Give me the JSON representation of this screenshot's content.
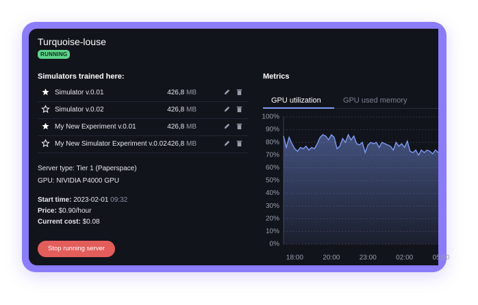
{
  "server": {
    "name": "Turquoise-louse",
    "status": "RUNNING"
  },
  "simulators": {
    "heading": "Simulators trained here:",
    "rows": [
      {
        "name": "Simulator v.0.01",
        "starred": true,
        "size": "426,8",
        "unit": "MB"
      },
      {
        "name": "Simulator v.0.02",
        "starred": false,
        "size": "426,8",
        "unit": "MB"
      },
      {
        "name": "My New Experiment v.0.01",
        "starred": true,
        "size": "426,8",
        "unit": "MB"
      },
      {
        "name": "My New Simulator Experiment v.0.02",
        "starred": false,
        "size": "426,8",
        "unit": "MB"
      }
    ]
  },
  "details": [
    {
      "label": "Server type:",
      "value": "Tier 1 (Paperspace)"
    },
    {
      "label": "GPU:",
      "value": "NIVIDIA P4000 GPU"
    },
    {
      "label": "Start time:",
      "value": "2023-02-01",
      "time": "09:32"
    },
    {
      "label": "Price:",
      "value": "$0.90/hour"
    },
    {
      "label": "Current cost:",
      "value": "$0.08"
    }
  ],
  "button": "Stop running server",
  "metrics": {
    "heading": "Metrics",
    "tabs": [
      "GPU utilization",
      "GPU used memory"
    ],
    "active_tab": 0
  },
  "chart_data": {
    "type": "area",
    "color": "#7f9cf5",
    "grid": true,
    "values": [
      85,
      76,
      84,
      79,
      75,
      73,
      76,
      75,
      77,
      74,
      76,
      75,
      79,
      84,
      86,
      85,
      82,
      86,
      84,
      75,
      77,
      83,
      80,
      86,
      82,
      85,
      79,
      78,
      80,
      72,
      78,
      80,
      79,
      80,
      76,
      80,
      79,
      78,
      77,
      74,
      80,
      77,
      79,
      76,
      81,
      73,
      72,
      74,
      70,
      74,
      72,
      74,
      73,
      71,
      74,
      72
    ],
    "xlim": [
      0,
      55
    ],
    "xticks": [
      {
        "value": 4,
        "label": "18:00"
      },
      {
        "value": 17,
        "label": "20:00"
      },
      {
        "value": 30,
        "label": "23:00"
      },
      {
        "value": 43,
        "label": "02:00"
      },
      {
        "value": 56,
        "label": "05:00"
      }
    ],
    "ylim": [
      0,
      100
    ],
    "yticks": [
      {
        "value": 100,
        "label": "100%"
      },
      {
        "value": 90,
        "label": "90%"
      },
      {
        "value": 80,
        "label": "80%"
      },
      {
        "value": 70,
        "label": "70%"
      },
      {
        "value": 60,
        "label": "60%"
      },
      {
        "value": 50,
        "label": "50%"
      },
      {
        "value": 40,
        "label": "40%"
      },
      {
        "value": 30,
        "label": "30%"
      },
      {
        "value": 20,
        "label": "20%"
      },
      {
        "value": 10,
        "label": "10%"
      },
      {
        "value": 0,
        "label": "0%"
      }
    ]
  }
}
